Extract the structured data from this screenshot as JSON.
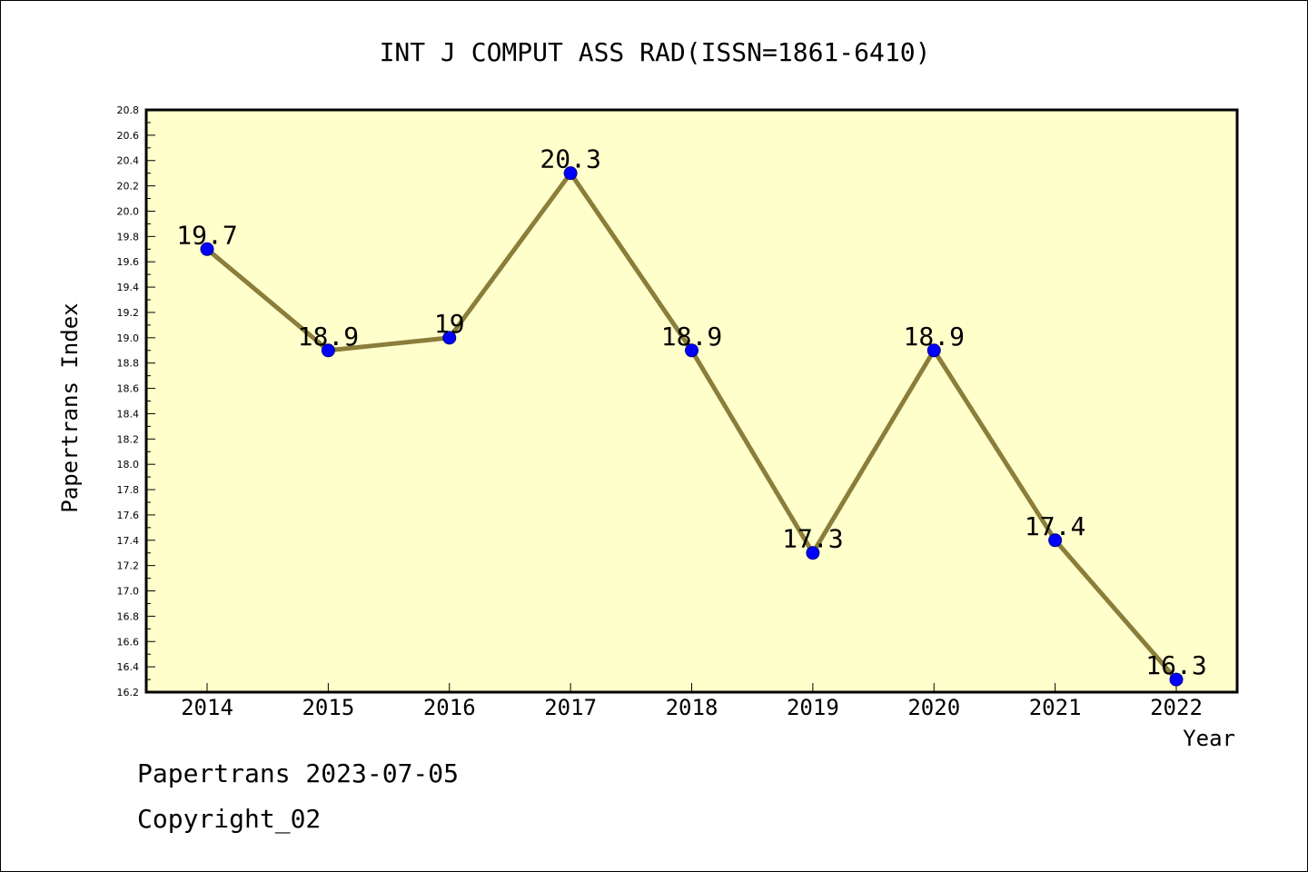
{
  "chart_data": {
    "type": "line",
    "title": "INT J COMPUT ASS RAD(ISSN=1861-6410)",
    "xlabel": "Year",
    "ylabel": "Papertrans Index",
    "categories": [
      "2014",
      "2015",
      "2016",
      "2017",
      "2018",
      "2019",
      "2020",
      "2021",
      "2022"
    ],
    "series": [
      {
        "values": [
          19.7,
          18.9,
          19.0,
          20.3,
          18.9,
          17.3,
          18.9,
          17.4,
          16.3
        ],
        "data_labels": [
          "19.7",
          "18.9",
          "19",
          "20.3",
          "18.9",
          "17.3",
          "18.9",
          "17.4",
          "16.3"
        ]
      }
    ],
    "ylim": [
      16.2,
      20.8
    ],
    "ytick_step": 0.2,
    "grid": false,
    "colors": {
      "plot_background": "#ffffcc",
      "line": "#8b7d3a",
      "marker": "#0000ff"
    }
  },
  "footer": {
    "date_text": "Papertrans 2023-07-05",
    "copyright_text": "Copyright_02"
  }
}
